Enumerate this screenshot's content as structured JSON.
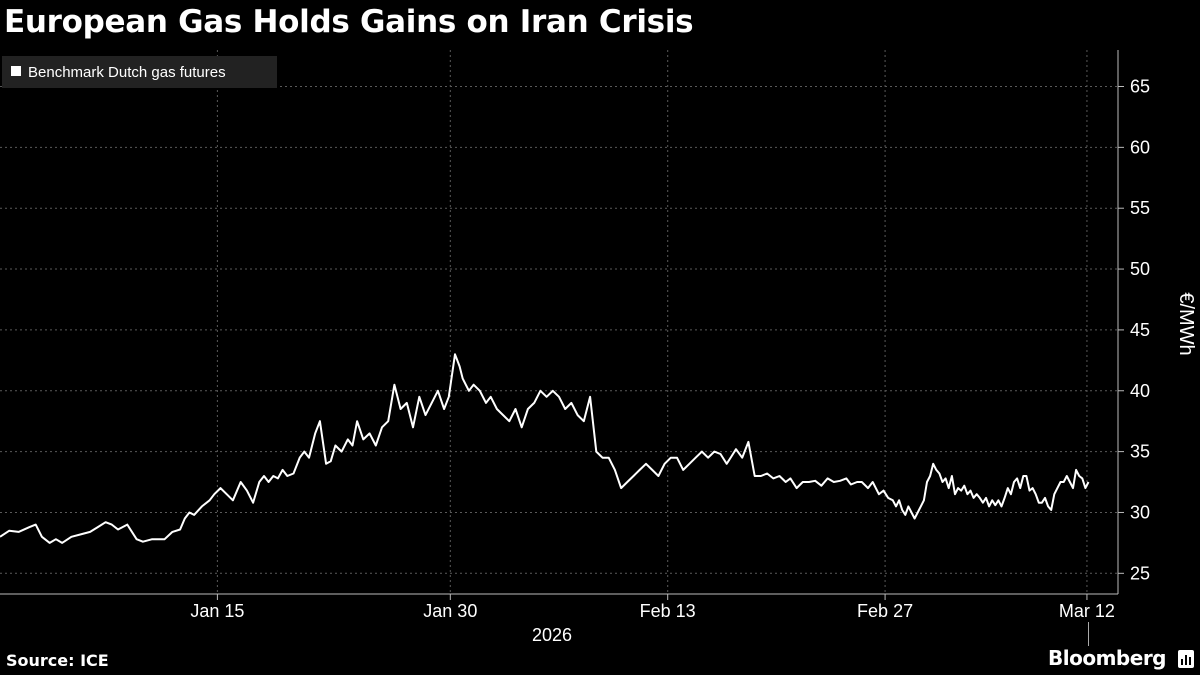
{
  "title": "European Gas Holds Gains on Iran Crisis",
  "source": "Source: ICE",
  "brand": "Bloomberg",
  "chart_data": {
    "type": "line",
    "title": "European Gas Holds Gains on Iran Crisis",
    "xlabel": "2026",
    "ylabel": "€/MWh",
    "ylim": [
      23.3,
      68.0
    ],
    "yticks": [
      25,
      30,
      35,
      40,
      45,
      50,
      55,
      60,
      65
    ],
    "xticks": [
      {
        "day": 15,
        "label": "Jan 15"
      },
      {
        "day": 30,
        "label": "Jan 30"
      },
      {
        "day": 44,
        "label": "Feb 13"
      },
      {
        "day": 58,
        "label": "Feb 27"
      },
      {
        "day": 71,
        "label": "Mar 12"
      }
    ],
    "xlim": [
      1,
      73
    ],
    "grid": true,
    "legend_position": "top-left",
    "colors": {
      "background": "#000000",
      "line": "#ffffff",
      "grid": "#555555",
      "legend_bg": "#222222"
    },
    "series": [
      {
        "name": "Benchmark Dutch gas futures",
        "x": [
          1.0,
          1.6,
          2.2,
          2.9,
          3.3,
          3.7,
          4.2,
          4.6,
          5.0,
          5.6,
          6.2,
          6.8,
          7.3,
          7.8,
          8.2,
          8.6,
          9.2,
          9.8,
          10.2,
          10.8,
          11.6,
          12.1,
          12.6,
          12.9,
          13.2,
          13.5,
          14.0,
          14.5,
          14.8,
          15.2,
          15.6,
          16.0,
          16.5,
          16.9,
          17.3,
          17.7,
          18.0,
          18.3,
          18.6,
          18.9,
          19.2,
          19.5,
          19.9,
          20.3,
          20.6,
          20.9,
          21.3,
          21.6,
          22.0,
          22.3,
          22.6,
          23.0,
          23.4,
          23.7,
          24.0,
          24.4,
          24.8,
          25.2,
          25.6,
          26.0,
          26.4,
          26.8,
          27.2,
          27.6,
          28.0,
          28.4,
          28.8,
          29.2,
          29.6,
          29.9,
          30.3,
          30.6,
          30.8,
          31.2,
          31.5,
          31.9,
          32.3,
          32.6,
          33.0,
          33.4,
          33.8,
          34.2,
          34.6,
          35.0,
          35.4,
          35.8,
          36.2,
          36.6,
          37.0,
          37.4,
          37.8,
          38.2,
          38.6,
          39.0,
          39.4,
          39.8,
          40.2,
          40.6,
          41.0,
          41.4,
          41.8,
          42.2,
          42.6,
          43.0,
          43.4,
          43.8,
          44.2,
          44.6,
          45.0,
          45.4,
          45.8,
          46.2,
          46.6,
          47.0,
          47.4,
          47.8,
          48.1,
          48.4,
          48.8,
          49.2,
          49.6,
          50.0,
          50.4,
          50.8,
          51.2,
          51.6,
          51.9,
          52.3,
          52.7,
          53.1,
          53.5,
          53.9,
          54.3,
          54.7,
          55.1,
          55.5,
          55.8,
          56.2,
          56.5,
          56.9,
          57.2,
          57.6,
          57.9,
          58.2,
          58.5,
          58.7,
          58.9,
          59.1,
          59.3,
          59.5,
          59.7,
          59.9,
          60.1,
          60.3,
          60.5,
          60.7,
          60.9,
          61.1,
          61.3,
          61.5,
          61.7,
          61.9,
          62.1,
          62.3,
          62.5,
          62.7,
          62.9,
          63.1,
          63.3,
          63.5,
          63.7,
          63.9,
          64.1,
          64.3,
          64.5,
          64.7,
          64.9,
          65.1,
          65.3,
          65.5,
          65.7,
          65.9,
          66.1,
          66.3,
          66.5,
          66.7,
          66.9,
          67.1,
          67.3,
          67.5,
          67.7,
          67.9,
          68.1,
          68.3,
          68.5,
          68.7,
          68.9,
          69.1,
          69.3,
          69.5,
          69.7,
          69.9,
          70.1,
          70.3,
          70.5,
          70.7,
          70.9,
          71.1
        ],
        "y": [
          28.0,
          28.5,
          28.4,
          28.8,
          29.0,
          28.0,
          27.5,
          27.8,
          27.5,
          28.0,
          28.2,
          28.4,
          28.8,
          29.2,
          29.0,
          28.6,
          29.0,
          27.8,
          27.6,
          27.8,
          27.8,
          28.4,
          28.6,
          29.5,
          30.0,
          29.8,
          30.5,
          31.0,
          31.5,
          32.0,
          31.5,
          31.0,
          32.5,
          31.8,
          30.8,
          32.5,
          33.0,
          32.5,
          33.0,
          32.8,
          33.5,
          33.0,
          33.2,
          34.5,
          35.0,
          34.5,
          36.5,
          37.5,
          34.0,
          34.2,
          35.5,
          35.0,
          36.0,
          35.5,
          37.5,
          36.0,
          36.5,
          35.5,
          37.0,
          37.5,
          40.5,
          38.5,
          39.0,
          37.0,
          39.5,
          38.0,
          39.0,
          40.0,
          38.5,
          39.5,
          43.0,
          42.0,
          41.0,
          40.0,
          40.5,
          40.0,
          39.0,
          39.5,
          38.5,
          38.0,
          37.5,
          38.5,
          37.0,
          38.5,
          39.0,
          40.0,
          39.5,
          40.0,
          39.5,
          38.5,
          39.0,
          38.0,
          37.5,
          39.5,
          35.0,
          34.5,
          34.5,
          33.5,
          32.0,
          32.5,
          33.0,
          33.5,
          34.0,
          33.5,
          33.0,
          34.0,
          34.5,
          34.5,
          33.5,
          34.0,
          34.5,
          35.0,
          34.5,
          35.0,
          34.8,
          34.0,
          34.6,
          35.2,
          34.5,
          35.8,
          33.0,
          33.0,
          33.2,
          32.8,
          33.0,
          32.5,
          32.8,
          32.0,
          32.5,
          32.5,
          32.6,
          32.2,
          32.8,
          32.5,
          32.6,
          32.8,
          32.3,
          32.5,
          32.5,
          32.0,
          32.5,
          31.5,
          31.8,
          31.2,
          31.0,
          30.5,
          31.0,
          30.2,
          29.8,
          30.5,
          30.0,
          29.5,
          30.0,
          30.5,
          31.0,
          32.5,
          33.0,
          34.0,
          33.5,
          33.2,
          32.5,
          32.8,
          32.0,
          33.0,
          31.5,
          32.0,
          31.8,
          32.2,
          31.5,
          31.8,
          31.2,
          31.5,
          31.2,
          30.8,
          31.2,
          30.5,
          31.0,
          30.6,
          31.0,
          30.5,
          31.2,
          32.0,
          31.5,
          32.5,
          32.8,
          32.0,
          33.0,
          33.0,
          31.8,
          32.0,
          31.5,
          30.8,
          30.8,
          31.2,
          30.5,
          30.2,
          31.5,
          32.0,
          32.5,
          32.5,
          33.0,
          32.5,
          32.0,
          33.5,
          33.0,
          32.8,
          32.0,
          32.5
        ]
      }
    ]
  }
}
